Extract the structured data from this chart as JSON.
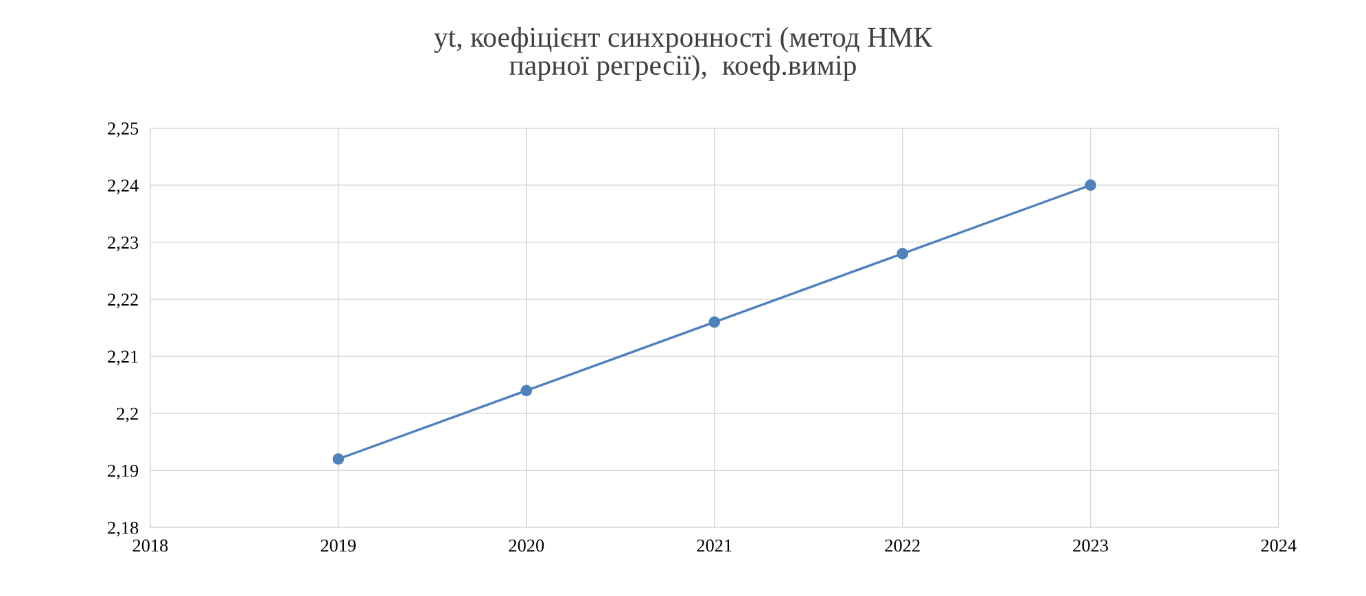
{
  "chart_data": {
    "type": "line",
    "title": "yt, коефіцієнт синхронності (метод НМК\nпарної регресії),  коеф.вимір",
    "x": [
      2019,
      2020,
      2021,
      2022,
      2023
    ],
    "series": [
      {
        "color": "#4f81bd",
        "values": [
          2.192,
          2.204,
          2.216,
          2.228,
          2.24
        ]
      }
    ],
    "xlim": [
      2018,
      2024
    ],
    "xticks": [
      2018,
      2019,
      2020,
      2021,
      2022,
      2023,
      2024
    ],
    "ylim": [
      2.18,
      2.25
    ],
    "yticks": [
      {
        "value": 2.18,
        "label": "2,18"
      },
      {
        "value": 2.19,
        "label": "2,19"
      },
      {
        "value": 2.2,
        "label": "2,2"
      },
      {
        "value": 2.21,
        "label": "2,21"
      },
      {
        "value": 2.22,
        "label": "2,22"
      },
      {
        "value": 2.23,
        "label": "2,23"
      },
      {
        "value": 2.24,
        "label": "2,24"
      },
      {
        "value": 2.25,
        "label": "2,25"
      }
    ],
    "grid": true,
    "marker": "circle",
    "line_style": "solid"
  }
}
